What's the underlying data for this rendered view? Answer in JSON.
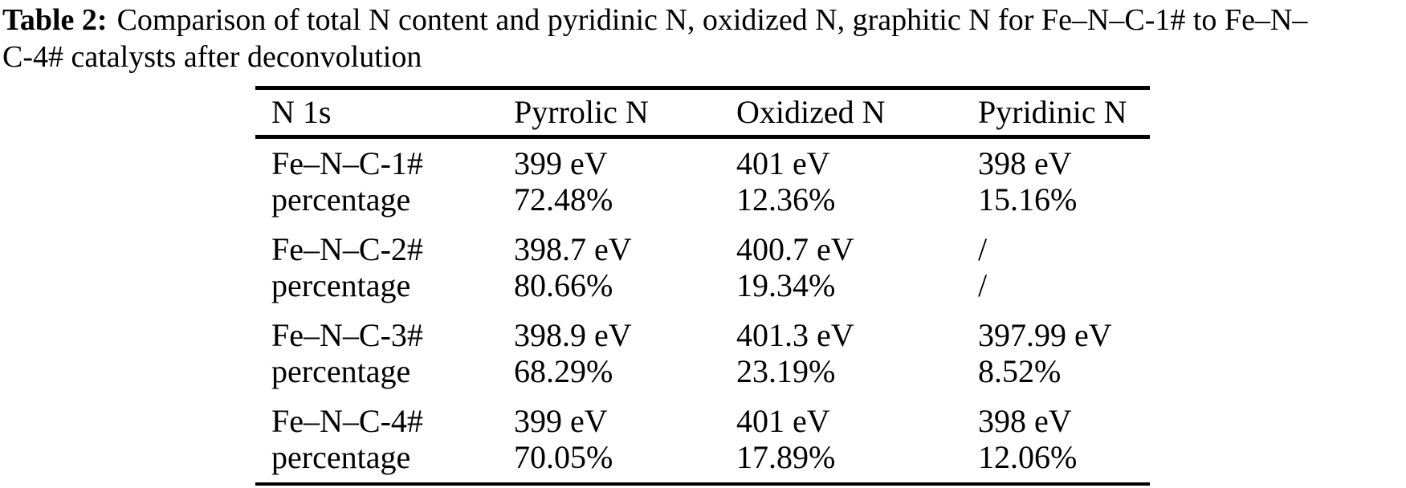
{
  "caption": {
    "bold": "Table 2:",
    "line1": "Comparison of total N content and pyridinic N, oxidized N, graphitic N for Fe–N–C-1# to Fe–N–",
    "line2": "C-4# catalysts after deconvolution"
  },
  "table": {
    "headers": [
      "N 1s",
      "Pyrrolic N",
      "Oxidized N",
      "Pyridinic N"
    ],
    "rows": [
      {
        "label": "Fe–N–C-1#",
        "values": [
          "399 eV",
          "401 eV",
          "398 eV"
        ],
        "percent_label": "percentage",
        "percents": [
          "72.48%",
          "12.36%",
          "15.16%"
        ]
      },
      {
        "label": "Fe–N–C-2#",
        "values": [
          "398.7 eV",
          "400.7 eV",
          "/"
        ],
        "percent_label": "percentage",
        "percents": [
          "80.66%",
          "19.34%",
          "/"
        ]
      },
      {
        "label": "Fe–N–C-3#",
        "values": [
          "398.9 eV",
          "401.3 eV",
          "397.99 eV"
        ],
        "percent_label": "percentage",
        "percents": [
          "68.29%",
          "23.19%",
          "8.52%"
        ]
      },
      {
        "label": "Fe–N–C-4#",
        "values": [
          "399 eV",
          "401 eV",
          "398 eV"
        ],
        "percent_label": "percentage",
        "percents": [
          "70.05%",
          "17.89%",
          "12.06%"
        ]
      }
    ]
  },
  "colors": {
    "background": "#ffffff",
    "text": "#000000",
    "rule": "#000000"
  }
}
